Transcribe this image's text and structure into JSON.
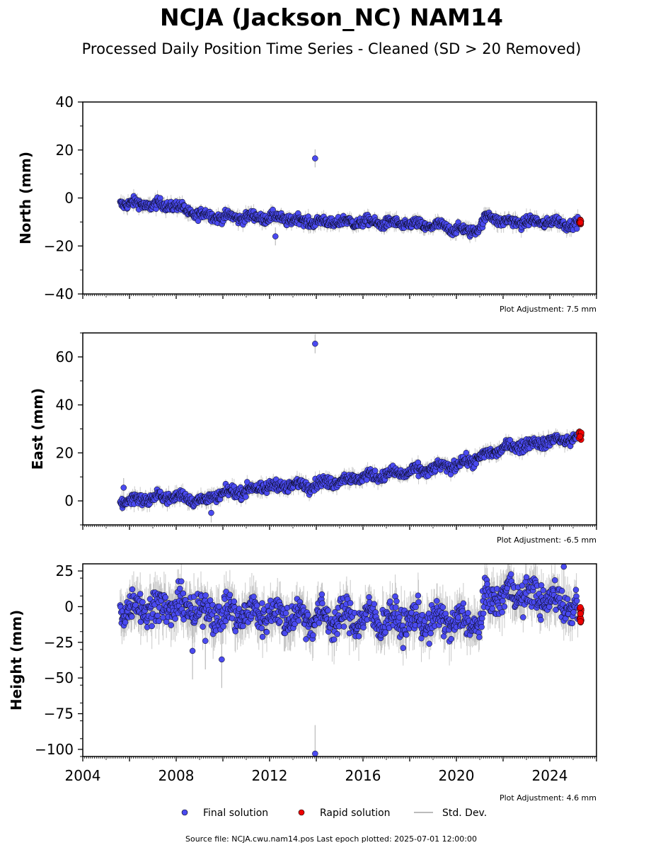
{
  "title": "NCJA (Jackson_NC) NAM14",
  "subtitle": "Processed Daily Position Time Series - Cleaned (SD > 20 Removed)",
  "colors": {
    "final": "#4a4af0",
    "rapid": "#ee0000",
    "stddev": "#bbbbbb",
    "edge": "#000000"
  },
  "legend": {
    "final": "Final solution",
    "rapid": "Rapid solution",
    "stddev": "Std. Dev."
  },
  "source_text": "Source file: NCJA.cwu.nam14.pos  Last epoch plotted: 2025-07-01 12:00:00",
  "chart_data": [
    {
      "type": "scatter",
      "name": "north",
      "ylabel": "North (mm)",
      "adjustment": "Plot Adjustment: 7.5 mm",
      "xlim": [
        2004,
        2026
      ],
      "ylim": [
        -40,
        40
      ],
      "yticks": [
        -40,
        -20,
        0,
        20,
        40
      ],
      "yticklabels": [
        "−40",
        "−20",
        "0",
        "20",
        "40"
      ],
      "final_trend": [
        [
          2005.6,
          -2
        ],
        [
          2007.0,
          -3
        ],
        [
          2008.0,
          -3
        ],
        [
          2008.5,
          -6
        ],
        [
          2010.0,
          -8
        ],
        [
          2012.0,
          -8
        ],
        [
          2014.0,
          -10
        ],
        [
          2016.0,
          -10
        ],
        [
          2018.0,
          -11
        ],
        [
          2019.5,
          -12
        ],
        [
          2020.5,
          -14
        ],
        [
          2021.0,
          -12
        ],
        [
          2021.4,
          -7
        ],
        [
          2022.0,
          -10
        ],
        [
          2024.0,
          -10
        ],
        [
          2025.2,
          -11
        ]
      ],
      "noise": 1.5,
      "outliers": [
        [
          2012.25,
          -16
        ],
        [
          2013.95,
          16.5
        ]
      ],
      "rapid": {
        "x": [
          2025.25,
          2025.5
        ],
        "y": [
          -11,
          -9
        ]
      }
    },
    {
      "type": "scatter",
      "name": "east",
      "ylabel": "East (mm)",
      "adjustment": "Plot Adjustment: -6.5 mm",
      "xlim": [
        2004,
        2026
      ],
      "ylim": [
        -10,
        70
      ],
      "yticks": [
        0,
        20,
        40,
        60
      ],
      "yticklabels": [
        "0",
        "20",
        "40",
        "60"
      ],
      "final_trend": [
        [
          2005.6,
          0
        ],
        [
          2008.0,
          2
        ],
        [
          2009.2,
          0
        ],
        [
          2010.0,
          3
        ],
        [
          2012.0,
          6
        ],
        [
          2014.0,
          7
        ],
        [
          2016.0,
          10
        ],
        [
          2018.0,
          12
        ],
        [
          2020.0,
          15
        ],
        [
          2021.0,
          18
        ],
        [
          2022.0,
          22
        ],
        [
          2024.0,
          25
        ],
        [
          2025.2,
          26
        ]
      ],
      "noise": 1.6,
      "outliers": [
        [
          2013.95,
          65.5
        ],
        [
          2009.5,
          -5
        ],
        [
          2005.75,
          5.5
        ]
      ],
      "rapid": {
        "x": [
          2025.25,
          2025.5
        ],
        "y": [
          25,
          29
        ]
      }
    },
    {
      "type": "scatter",
      "name": "height",
      "ylabel": "Height (mm)",
      "adjustment": "Plot Adjustment: 4.6 mm",
      "xlim": [
        2004,
        2026
      ],
      "ylim": [
        -105,
        30
      ],
      "yticks": [
        -100,
        -75,
        -50,
        -25,
        0,
        25
      ],
      "yticklabels": [
        "−100",
        "−75",
        "−50",
        "−25",
        "0",
        "25"
      ],
      "xticks": [
        2004,
        2008,
        2012,
        2016,
        2020,
        2024
      ],
      "final_trend": [
        [
          2005.6,
          0
        ],
        [
          2008.0,
          0
        ],
        [
          2010.0,
          -5
        ],
        [
          2012.0,
          -5
        ],
        [
          2014.0,
          -8
        ],
        [
          2016.0,
          -8
        ],
        [
          2018.0,
          -10
        ],
        [
          2020.0,
          -10
        ],
        [
          2021.0,
          -12
        ],
        [
          2021.3,
          5
        ],
        [
          2022.5,
          10
        ],
        [
          2024.0,
          5
        ],
        [
          2025.2,
          0
        ]
      ],
      "noise": 8,
      "outliers": [
        [
          2013.95,
          -103
        ],
        [
          2009.95,
          -37
        ],
        [
          2008.7,
          -31
        ],
        [
          2009.25,
          -24
        ],
        [
          2024.6,
          28
        ]
      ],
      "rapid": {
        "x": [
          2025.25,
          2025.5
        ],
        "y": [
          -13,
          0
        ]
      }
    }
  ]
}
